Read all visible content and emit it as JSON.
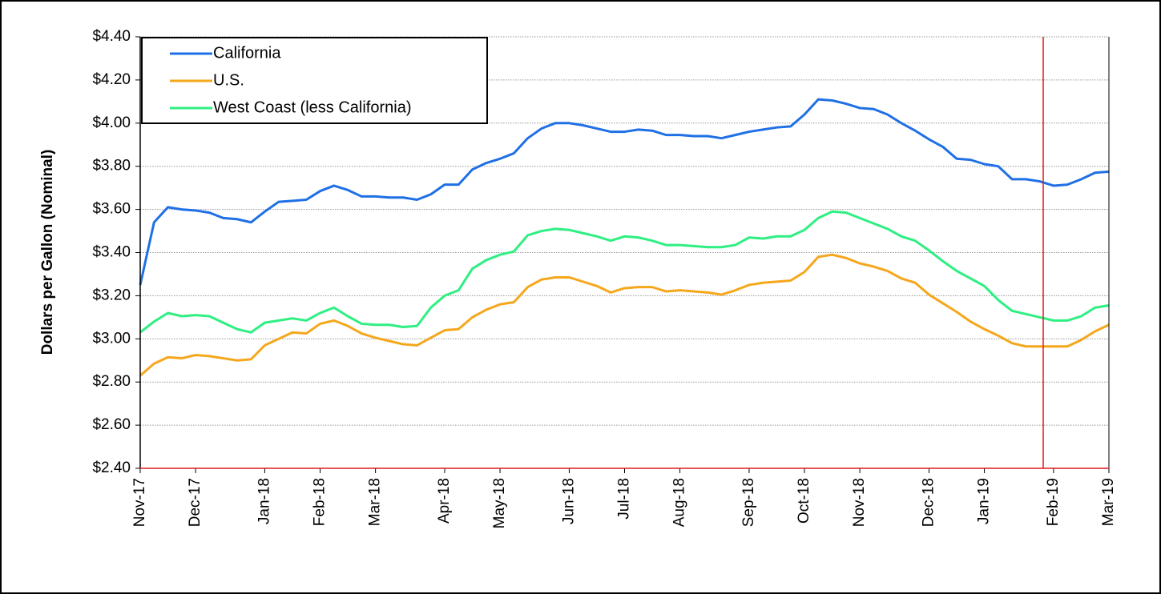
{
  "chart_data": {
    "type": "line",
    "y_label": "Dollars per Gallon (Nominal)",
    "ylim": [
      2.4,
      4.4
    ],
    "yticks": [
      {
        "value": 2.4,
        "label": "$2.40"
      },
      {
        "value": 2.6,
        "label": "$2.60"
      },
      {
        "value": 2.8,
        "label": "$2.80"
      },
      {
        "value": 3.0,
        "label": "$3.00"
      },
      {
        "value": 3.2,
        "label": "$3.20"
      },
      {
        "value": 3.4,
        "label": "$3.40"
      },
      {
        "value": 3.6,
        "label": "$3.60"
      },
      {
        "value": 3.8,
        "label": "$3.80"
      },
      {
        "value": 4.0,
        "label": "$4.00"
      },
      {
        "value": 4.2,
        "label": "$4.20"
      },
      {
        "value": 4.4,
        "label": "$4.40"
      }
    ],
    "grid": true,
    "legend": "top-left",
    "categories": [
      "Nov-17",
      null,
      null,
      null,
      "Dec-17",
      null,
      null,
      null,
      null,
      "Jan-18",
      null,
      null,
      null,
      "Feb-18",
      null,
      null,
      null,
      "Mar-18",
      null,
      null,
      null,
      null,
      "Apr-18",
      null,
      null,
      null,
      "May-18",
      null,
      null,
      null,
      null,
      "Jun-18",
      null,
      null,
      null,
      "Jul-18",
      null,
      null,
      null,
      "Aug-18",
      null,
      null,
      null,
      null,
      "Sep-18",
      null,
      null,
      null,
      "Oct-18",
      null,
      null,
      null,
      "Nov-18",
      null,
      null,
      null,
      null,
      "Dec-18",
      null,
      null,
      null,
      "Jan-19",
      null,
      null,
      null,
      null,
      "Feb-19",
      null,
      null,
      null,
      "Mar-19"
    ],
    "series": [
      {
        "name": "California",
        "color": "#1f70e6",
        "values": [
          3.25,
          3.54,
          3.61,
          3.6,
          3.595,
          3.585,
          3.56,
          3.555,
          3.54,
          3.59,
          3.635,
          3.64,
          3.645,
          3.685,
          3.71,
          3.69,
          3.66,
          3.66,
          3.655,
          3.655,
          3.645,
          3.67,
          3.715,
          3.715,
          3.785,
          3.815,
          3.835,
          3.86,
          3.93,
          3.975,
          4.0,
          4.0,
          3.99,
          3.975,
          3.96,
          3.96,
          3.97,
          3.965,
          3.945,
          3.945,
          3.94,
          3.94,
          3.93,
          3.945,
          3.96,
          3.97,
          3.98,
          3.985,
          4.04,
          4.11,
          4.105,
          4.09,
          4.07,
          4.065,
          4.04,
          4.0,
          3.965,
          3.925,
          3.89,
          3.835,
          3.83,
          3.81,
          3.8,
          3.74,
          3.74,
          3.73,
          3.71,
          3.715,
          3.74,
          3.77,
          3.775
        ]
      },
      {
        "name": "U.S.",
        "color": "#f5a71c",
        "values": [
          2.83,
          2.885,
          2.915,
          2.91,
          2.925,
          2.92,
          2.91,
          2.9,
          2.905,
          2.97,
          3.0,
          3.03,
          3.025,
          3.07,
          3.085,
          3.06,
          3.025,
          3.005,
          2.99,
          2.975,
          2.97,
          3.005,
          3.04,
          3.045,
          3.1,
          3.135,
          3.16,
          3.17,
          3.24,
          3.275,
          3.285,
          3.285,
          3.265,
          3.245,
          3.215,
          3.235,
          3.24,
          3.24,
          3.22,
          3.225,
          3.22,
          3.215,
          3.205,
          3.225,
          3.25,
          3.26,
          3.265,
          3.27,
          3.31,
          3.38,
          3.39,
          3.375,
          3.35,
          3.335,
          3.315,
          3.28,
          3.26,
          3.205,
          3.165,
          3.125,
          3.08,
          3.045,
          3.015,
          2.98,
          2.965,
          2.965,
          2.965,
          2.965,
          2.995,
          3.035,
          3.065
        ]
      },
      {
        "name": "West Coast (less California)",
        "color": "#2eef82",
        "values": [
          3.03,
          3.08,
          3.12,
          3.105,
          3.11,
          3.105,
          3.075,
          3.045,
          3.03,
          3.075,
          3.085,
          3.095,
          3.085,
          3.12,
          3.145,
          3.105,
          3.07,
          3.065,
          3.065,
          3.055,
          3.06,
          3.145,
          3.2,
          3.225,
          3.325,
          3.365,
          3.39,
          3.405,
          3.48,
          3.5,
          3.51,
          3.505,
          3.49,
          3.475,
          3.455,
          3.475,
          3.47,
          3.455,
          3.435,
          3.435,
          3.43,
          3.425,
          3.425,
          3.435,
          3.47,
          3.465,
          3.475,
          3.475,
          3.505,
          3.56,
          3.59,
          3.585,
          3.56,
          3.535,
          3.51,
          3.475,
          3.455,
          3.41,
          3.36,
          3.315,
          3.28,
          3.245,
          3.18,
          3.13,
          3.115,
          3.1,
          3.085,
          3.085,
          3.105,
          3.145,
          3.155
        ]
      }
    ]
  }
}
